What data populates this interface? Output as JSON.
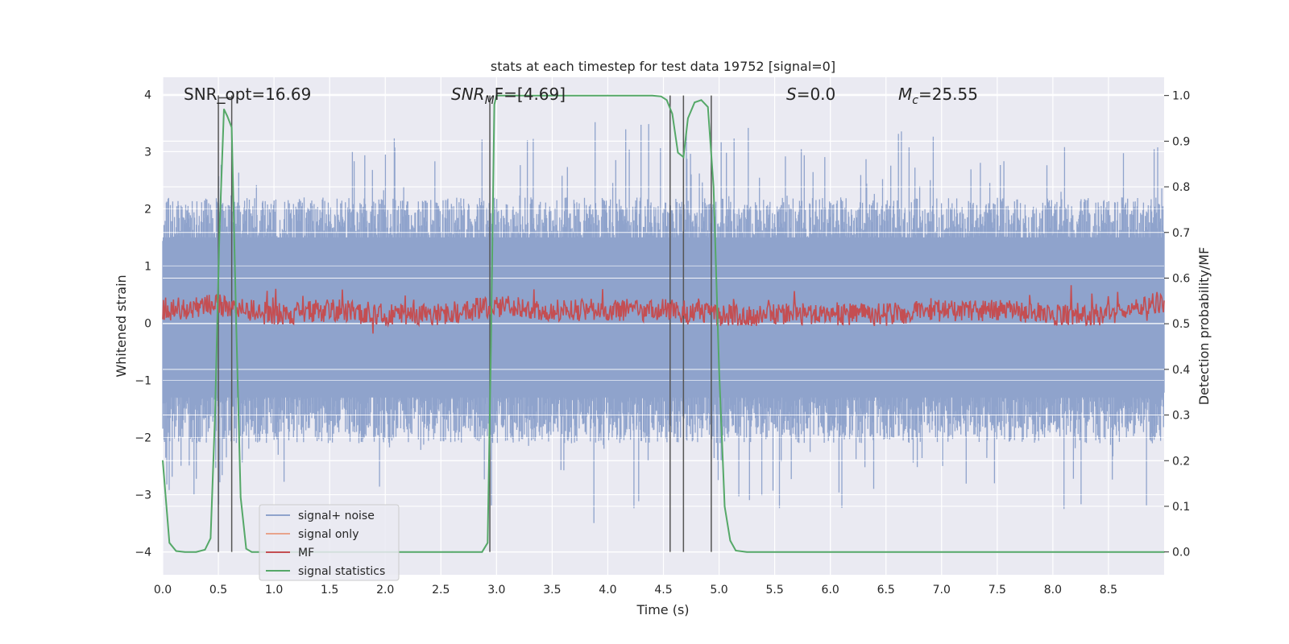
{
  "chart_data": {
    "type": "line",
    "title": "stats at each timestep for test data 19752 [signal=0]",
    "xlabel": "Time (s)",
    "ylabel": "Whitened strain",
    "y2label": "Detection probability/MF",
    "xlim": [
      0.0,
      9.0
    ],
    "ylim": [
      -4.4,
      4.3
    ],
    "y2lim": [
      -0.05,
      1.04
    ],
    "xticks": [
      "0.0",
      "0.5",
      "1.0",
      "1.5",
      "2.0",
      "2.5",
      "3.0",
      "3.5",
      "4.0",
      "4.5",
      "5.0",
      "5.5",
      "6.0",
      "6.5",
      "7.0",
      "7.5",
      "8.0",
      "8.5"
    ],
    "yticks": [
      "4",
      "3",
      "2",
      "1",
      "0",
      "−1",
      "−2",
      "−3",
      "−4"
    ],
    "y2ticks": [
      "1.0",
      "0.9",
      "0.8",
      "0.7",
      "0.6",
      "0.5",
      "0.4",
      "0.3",
      "0.2",
      "0.1",
      "0.0"
    ],
    "grid": true,
    "legend_position": "lower-left",
    "legend": [
      {
        "label": "signal+ noise",
        "color": "#8fa3cc"
      },
      {
        "label": "signal only",
        "color": "#e8a48c"
      },
      {
        "label": "MF",
        "color": "#c44e52"
      },
      {
        "label": "signal statistics",
        "color": "#55a868"
      }
    ],
    "annotations": {
      "snr_opt": "SNR_opt=16.69",
      "snr_mf_base": "SNR",
      "snr_mf_sub": "M",
      "snr_mf_rest": "F=[4.69]",
      "s_base": "S",
      "s_rest": "=0.0",
      "mc_base": "M",
      "mc_sub": "c",
      "mc_rest": "=25.55"
    },
    "series": [
      {
        "name": "signal statistics",
        "axis": "right",
        "color": "#55a868",
        "x": [
          0.0,
          0.06,
          0.12,
          0.2,
          0.3,
          0.38,
          0.43,
          0.47,
          0.51,
          0.55,
          0.58,
          0.62,
          0.66,
          0.7,
          0.75,
          0.8,
          0.85,
          1.0,
          2.0,
          2.6,
          2.87,
          2.92,
          2.95,
          2.98,
          3.0,
          3.5,
          4.0,
          4.4,
          4.48,
          4.53,
          4.58,
          4.63,
          4.68,
          4.72,
          4.78,
          4.84,
          4.9,
          4.95,
          5.0,
          5.05,
          5.1,
          5.15,
          5.25,
          6.0,
          7.0,
          8.0,
          9.0
        ],
        "y": [
          0.2,
          0.02,
          0.002,
          0.0,
          0.0,
          0.005,
          0.03,
          0.3,
          0.7,
          0.97,
          0.955,
          0.93,
          0.5,
          0.12,
          0.007,
          0.0,
          0.0,
          0.0,
          0.0,
          0.0,
          0.0,
          0.02,
          0.45,
          0.98,
          1.0,
          1.0,
          1.0,
          1.0,
          0.998,
          0.99,
          0.96,
          0.875,
          0.865,
          0.95,
          0.985,
          0.99,
          0.975,
          0.8,
          0.4,
          0.1,
          0.025,
          0.003,
          0.0,
          0.0,
          0.0,
          0.0,
          0.0
        ]
      },
      {
        "name": "MF",
        "axis": "right",
        "color": "#c44e52",
        "x": [
          0.0,
          0.5,
          1.0,
          1.5,
          2.0,
          2.5,
          3.0,
          3.5,
          4.0,
          4.5,
          5.0,
          5.5,
          6.0,
          6.5,
          7.0,
          7.5,
          8.0,
          8.5,
          9.0
        ],
        "y": [
          0.53,
          0.54,
          0.52,
          0.53,
          0.52,
          0.52,
          0.54,
          0.53,
          0.53,
          0.53,
          0.52,
          0.52,
          0.52,
          0.52,
          0.53,
          0.53,
          0.52,
          0.52,
          0.55
        ]
      },
      {
        "name": "signal+ noise",
        "axis": "left",
        "color": "#8fa3cc",
        "x": [
          0.0,
          0.5,
          1.0,
          1.5,
          2.0,
          2.5,
          3.0,
          3.5,
          4.0,
          4.5,
          5.0,
          5.5,
          6.0,
          6.5,
          7.0,
          7.5,
          8.0,
          8.5,
          9.0
        ],
        "y": [
          2.4,
          -2.0,
          2.5,
          -2.3,
          2.6,
          -2.2,
          2.3,
          -2.5,
          2.4,
          -2.4,
          2.2,
          -2.3,
          2.4,
          -2.2,
          2.5,
          -2.4,
          2.6,
          -2.3,
          2.2
        ]
      }
    ],
    "vlines_x": [
      0.5,
      0.62,
      2.94,
      4.56,
      4.68,
      4.93
    ]
  }
}
